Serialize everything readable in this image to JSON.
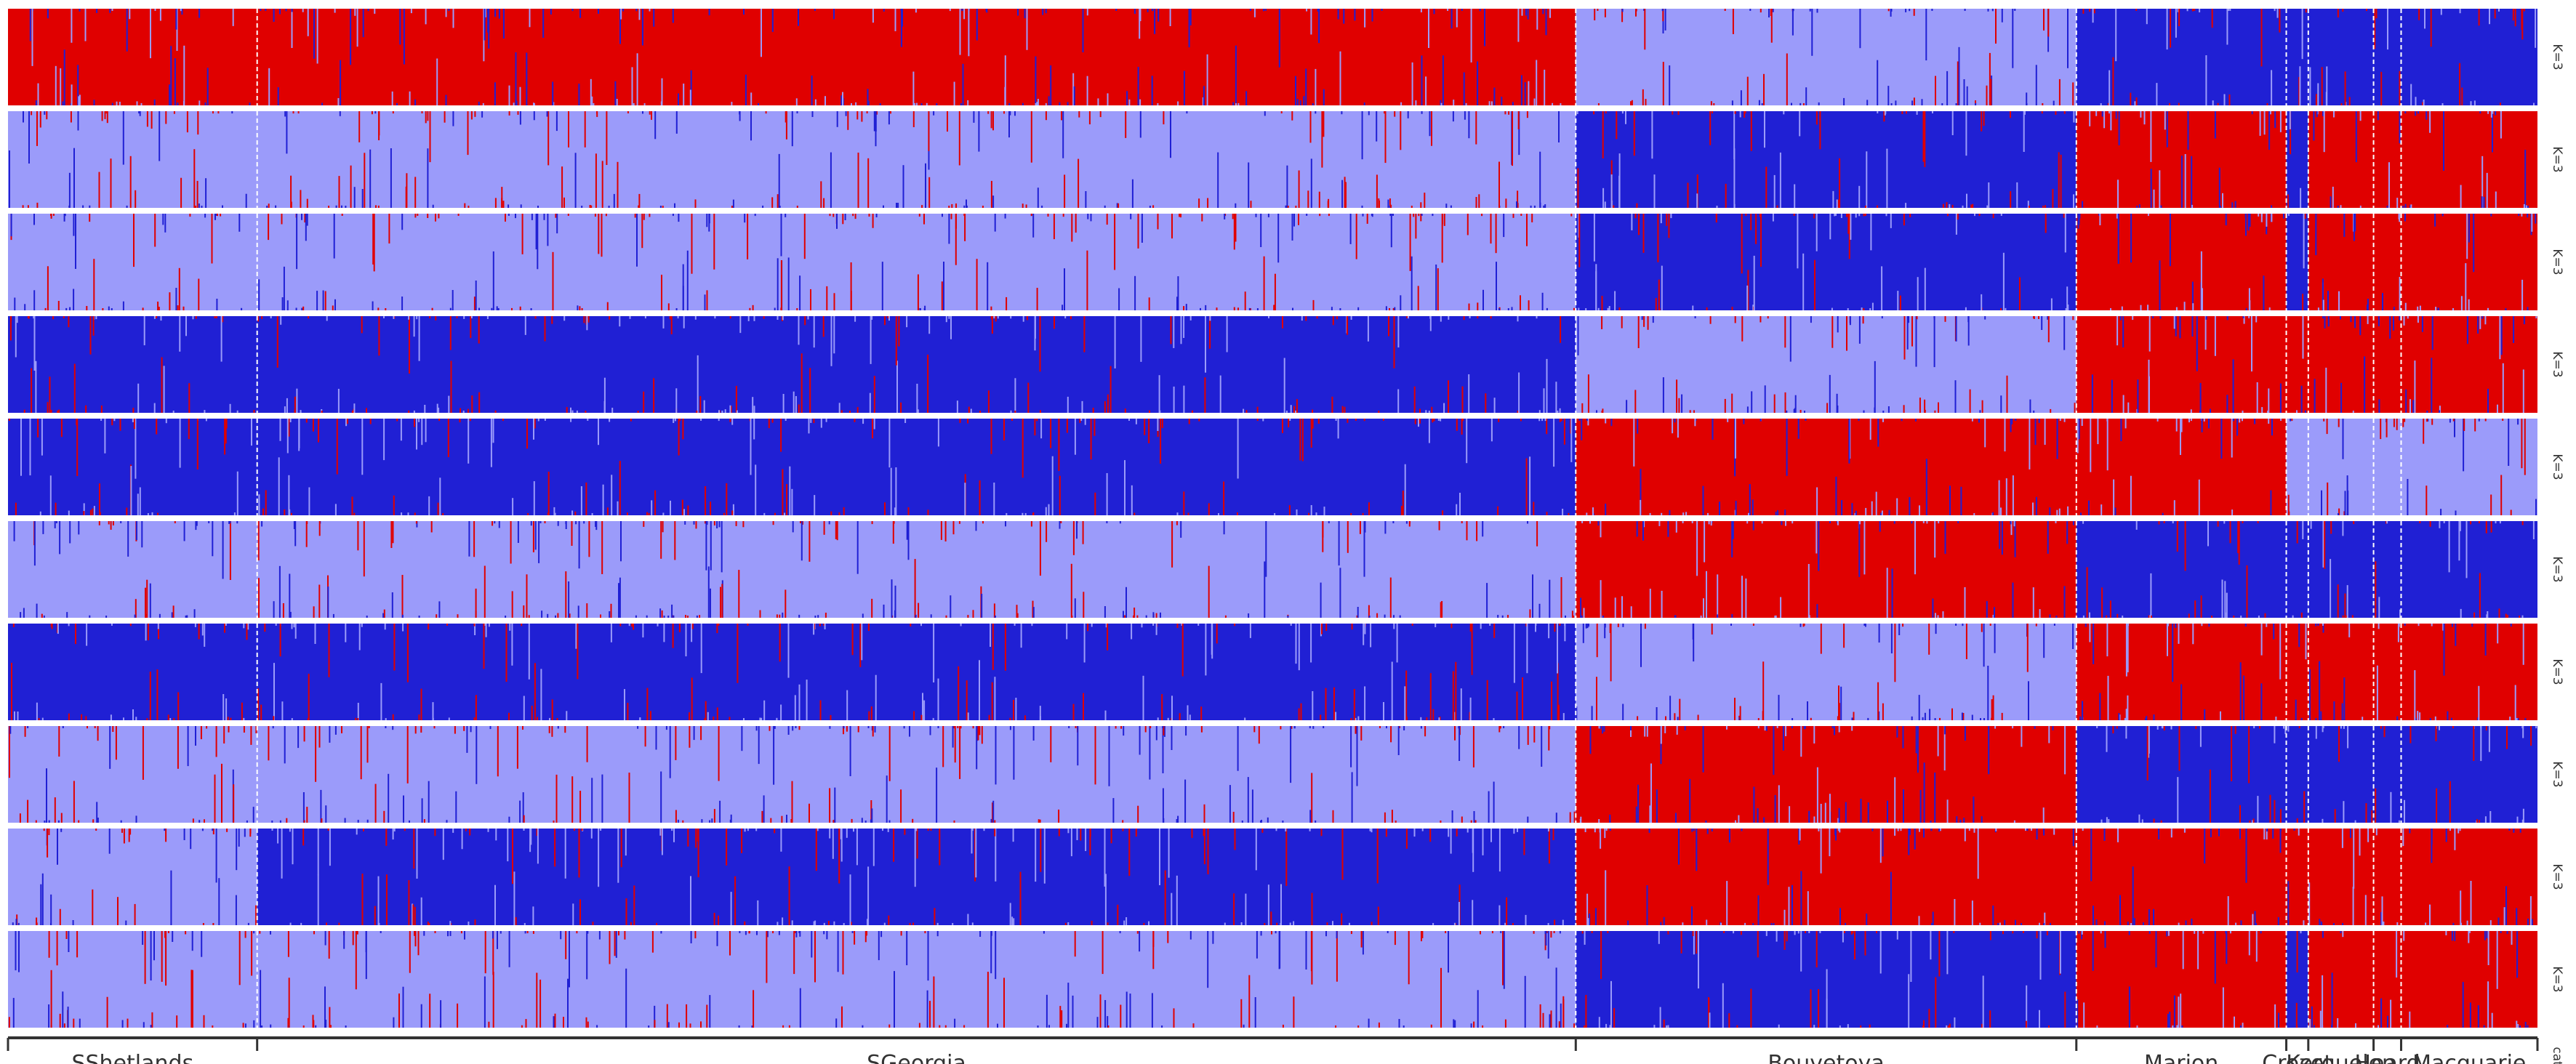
{
  "chart_data": {
    "type": "stacked-bar (admixture / STRUCTURE plot)",
    "populations": [
      {
        "name": "SShetlands",
        "proportion": 0.0985
      },
      {
        "name": "SGeorgia",
        "proportion": 0.5213
      },
      {
        "name": "Bouvetoya",
        "proportion": 0.1979
      },
      {
        "name": "Marion",
        "proportion": 0.083
      },
      {
        "name": "Crozet",
        "proportion": 0.0087
      },
      {
        "name": "Kerguelen",
        "proportion": 0.0258
      },
      {
        "name": "Heard",
        "proportion": 0.0109
      },
      {
        "name": "Macquarie",
        "proportion": 0.0539
      }
    ],
    "cluster_colors": {
      "A": "#2020d4",
      "B": "#9b9bfa",
      "C": "#e00000"
    },
    "rows": [
      {
        "label": "K=3",
        "dominant": [
          "C",
          "C",
          "B",
          "A",
          "A",
          "A",
          "A",
          "A"
        ]
      },
      {
        "label": "K=3",
        "dominant": [
          "B",
          "B",
          "A",
          "C",
          "A",
          "C",
          "C",
          "C"
        ]
      },
      {
        "label": "K=3",
        "dominant": [
          "B",
          "B",
          "A",
          "C",
          "A",
          "C",
          "C",
          "C"
        ]
      },
      {
        "label": "K=3",
        "dominant": [
          "A",
          "A",
          "B",
          "C",
          "C",
          "C",
          "C",
          "C"
        ]
      },
      {
        "label": "K=3",
        "dominant": [
          "A",
          "A",
          "C",
          "C",
          "B",
          "B",
          "B",
          "B"
        ]
      },
      {
        "label": "K=3",
        "dominant": [
          "B",
          "B",
          "C",
          "A",
          "A",
          "A",
          "A",
          "A"
        ]
      },
      {
        "label": "K=3",
        "dominant": [
          "A",
          "A",
          "B",
          "C",
          "C",
          "C",
          "C",
          "C"
        ]
      },
      {
        "label": "K=3",
        "dominant": [
          "B",
          "B",
          "C",
          "A",
          "A",
          "A",
          "A",
          "A"
        ]
      },
      {
        "label": "K=3",
        "dominant": [
          "B",
          "A",
          "C",
          "C",
          "C",
          "C",
          "C",
          "C"
        ]
      },
      {
        "label": "K=3",
        "dominant": [
          "B",
          "B",
          "A",
          "C",
          "A",
          "C",
          "C",
          "C"
        ]
      }
    ],
    "bottom_label": "cats",
    "legend": "none",
    "grid": false
  }
}
